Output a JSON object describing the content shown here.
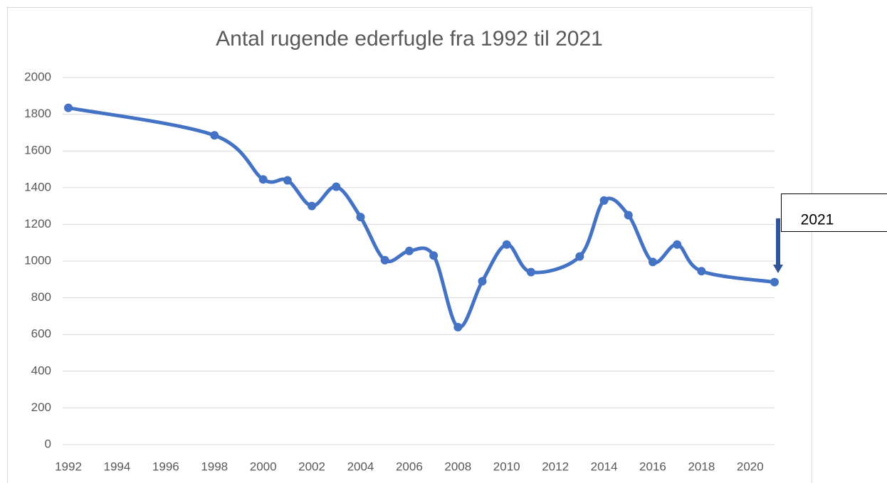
{
  "chart_data": {
    "type": "line",
    "title": "Antal rugende ederfugle fra 1992 til 2021",
    "x": [
      1992,
      1998,
      2000,
      2001,
      2002,
      2003,
      2004,
      2005,
      2006,
      2007,
      2008,
      2009,
      2010,
      2011,
      2013,
      2014,
      2015,
      2016,
      2017,
      2018,
      2021
    ],
    "values": [
      1835,
      1685,
      1445,
      1440,
      1300,
      1405,
      1240,
      1005,
      1055,
      1030,
      640,
      890,
      1090,
      940,
      1025,
      1330,
      1250,
      995,
      1090,
      945,
      885
    ],
    "color": "#4472c4",
    "xlim": [
      1992,
      2021
    ],
    "xticks": [
      1992,
      1994,
      1996,
      1998,
      2000,
      2002,
      2004,
      2006,
      2008,
      2010,
      2012,
      2014,
      2016,
      2018,
      2020
    ],
    "ylim": [
      0,
      2000
    ],
    "yticks": [
      0,
      200,
      400,
      600,
      800,
      1000,
      1200,
      1400,
      1600,
      1800,
      2000
    ],
    "grid": true,
    "smooth": true,
    "annotation": "2021"
  }
}
